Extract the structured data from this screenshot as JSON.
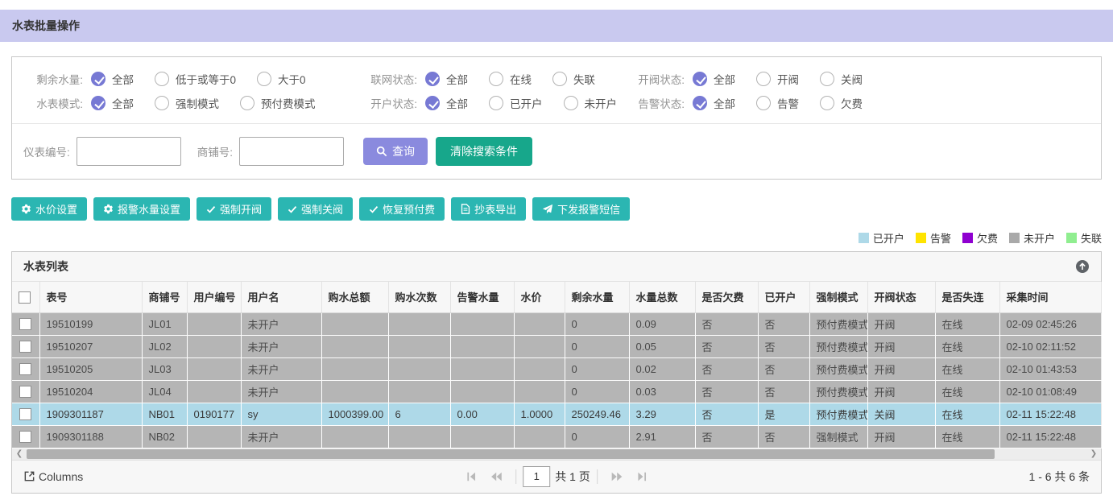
{
  "page": {
    "title": "水表批量操作"
  },
  "filters": {
    "rows": [
      {
        "groups": [
          {
            "label": "剩余水量:",
            "options": [
              {
                "label": "全部",
                "checked": true
              },
              {
                "label": "低于或等于0",
                "checked": false
              },
              {
                "label": "大于0",
                "checked": false
              }
            ]
          },
          {
            "label": "联网状态:",
            "options": [
              {
                "label": "全部",
                "checked": true
              },
              {
                "label": "在线",
                "checked": false
              },
              {
                "label": "失联",
                "checked": false
              }
            ]
          },
          {
            "label": "开阀状态:",
            "options": [
              {
                "label": "全部",
                "checked": true
              },
              {
                "label": "开阀",
                "checked": false
              },
              {
                "label": "关阀",
                "checked": false
              }
            ]
          }
        ]
      },
      {
        "groups": [
          {
            "label": "水表模式:",
            "options": [
              {
                "label": "全部",
                "checked": true
              },
              {
                "label": "强制模式",
                "checked": false
              },
              {
                "label": "预付费模式",
                "checked": false
              }
            ]
          },
          {
            "label": "开户状态:",
            "options": [
              {
                "label": "全部",
                "checked": true
              },
              {
                "label": "已开户",
                "checked": false
              },
              {
                "label": "未开户",
                "checked": false
              }
            ]
          },
          {
            "label": "告警状态:",
            "options": [
              {
                "label": "全部",
                "checked": true
              },
              {
                "label": "告警",
                "checked": false
              },
              {
                "label": "欠费",
                "checked": false
              }
            ]
          }
        ]
      }
    ],
    "search": {
      "meter_no_label": "仪表编号:",
      "meter_no_value": "",
      "shop_no_label": "商铺号:",
      "shop_no_value": "",
      "query_label": "查询",
      "query_icon": "search-icon",
      "clear_label": "清除搜索条件"
    }
  },
  "actions": [
    {
      "icon": "gear-icon",
      "label": "水价设置"
    },
    {
      "icon": "gear-icon",
      "label": "报警水量设置"
    },
    {
      "icon": "check-icon",
      "label": "强制开阀"
    },
    {
      "icon": "check-icon",
      "label": "强制关阀"
    },
    {
      "icon": "check-icon",
      "label": "恢复预付费"
    },
    {
      "icon": "file-icon",
      "label": "抄表导出"
    },
    {
      "icon": "send-icon",
      "label": "下发报警短信"
    }
  ],
  "legend": [
    {
      "label": "已开户",
      "color": "#aed9e8"
    },
    {
      "label": "告警",
      "color": "#ffe400"
    },
    {
      "label": "欠费",
      "color": "#8f00d0"
    },
    {
      "label": "未开户",
      "color": "#a9a9a9"
    },
    {
      "label": "失联",
      "color": "#90ee90"
    }
  ],
  "table": {
    "title": "水表列表",
    "collapse_icon": "collapse-up-icon",
    "columns": [
      "表号",
      "商铺号",
      "用户编号",
      "用户名",
      "购水总额",
      "购水次数",
      "告警水量",
      "水价",
      "剩余水量",
      "水量总数",
      "是否欠费",
      "已开户",
      "强制模式",
      "开阀状态",
      "是否失连",
      "采集时间"
    ],
    "rows": [
      {
        "status": "unopened",
        "cells": [
          "19510199",
          "JL01",
          "",
          "未开户",
          "",
          "",
          "",
          "",
          "0",
          "0.09",
          "否",
          "否",
          "预付费模式",
          "开阀",
          "在线",
          "02-09 02:45:26"
        ]
      },
      {
        "status": "unopened",
        "cells": [
          "19510207",
          "JL02",
          "",
          "未开户",
          "",
          "",
          "",
          "",
          "0",
          "0.05",
          "否",
          "否",
          "预付费模式",
          "开阀",
          "在线",
          "02-10 02:11:52"
        ]
      },
      {
        "status": "unopened",
        "cells": [
          "19510205",
          "JL03",
          "",
          "未开户",
          "",
          "",
          "",
          "",
          "0",
          "0.02",
          "否",
          "否",
          "预付费模式",
          "开阀",
          "在线",
          "02-10 01:43:53"
        ]
      },
      {
        "status": "unopened",
        "cells": [
          "19510204",
          "JL04",
          "",
          "未开户",
          "",
          "",
          "",
          "",
          "0",
          "0.03",
          "否",
          "否",
          "预付费模式",
          "开阀",
          "在线",
          "02-10 01:08:49"
        ]
      },
      {
        "status": "opened",
        "cells": [
          "1909301187",
          "NB01",
          "0190177",
          "sy",
          "1000399.00",
          "6",
          "0.00",
          "1.0000",
          "250249.46",
          "3.29",
          "否",
          "是",
          "预付费模式",
          "关阀",
          "在线",
          "02-11 15:22:48"
        ]
      },
      {
        "status": "unopened",
        "cells": [
          "1909301188",
          "NB02",
          "",
          "未开户",
          "",
          "",
          "",
          "",
          "0",
          "2.91",
          "否",
          "否",
          "强制模式",
          "开阀",
          "在线",
          "02-11 15:22:48"
        ]
      }
    ]
  },
  "footer": {
    "columns_label": "Columns",
    "columns_icon": "columns-icon",
    "page_value": "1",
    "total_pages_label": "共 1 页",
    "range_label": "1 - 6  共 6 条"
  }
}
